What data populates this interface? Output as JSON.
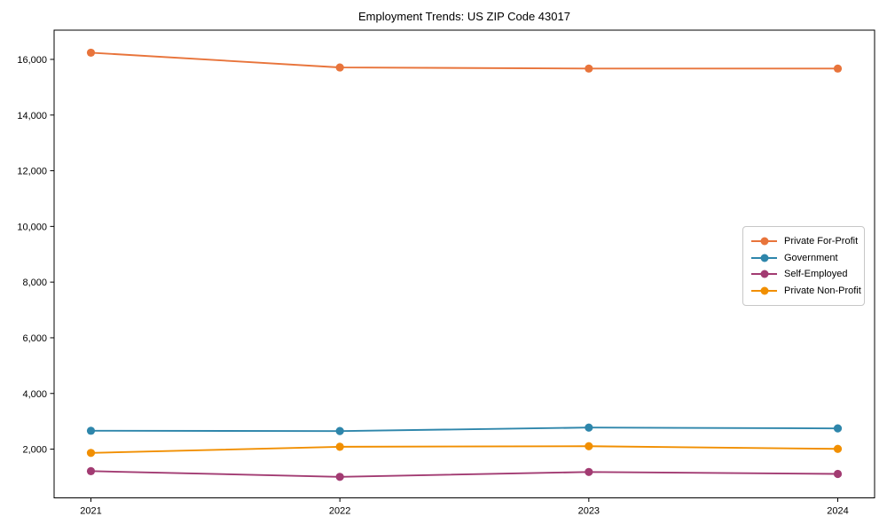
{
  "chart_data": {
    "type": "line",
    "title": "Employment Trends: US ZIP Code 43017",
    "xlabel": "",
    "ylabel": "",
    "x": [
      "2021",
      "2022",
      "2023",
      "2024"
    ],
    "series": [
      {
        "name": "Private For-Profit",
        "color": "#E8743B",
        "values": [
          16240,
          15710,
          15670,
          15670
        ]
      },
      {
        "name": "Government",
        "color": "#2E86AB",
        "values": [
          2660,
          2650,
          2775,
          2745
        ]
      },
      {
        "name": "Self-Employed",
        "color": "#A23B72",
        "values": [
          1210,
          1005,
          1180,
          1110
        ]
      },
      {
        "name": "Private Non-Profit",
        "color": "#F18F01",
        "values": [
          1865,
          2085,
          2105,
          2010
        ]
      }
    ],
    "ylim": [
      250,
      17050
    ],
    "yticks": [
      2000,
      4000,
      6000,
      8000,
      10000,
      12000,
      14000,
      16000
    ],
    "ytick_labels": [
      "2,000",
      "4,000",
      "6,000",
      "8,000",
      "10,000",
      "12,000",
      "14,000",
      "16,000"
    ],
    "grid": false,
    "legend_position": "right-middle",
    "marker": "circle",
    "axis_color": "#000000",
    "background_color": "#ffffff"
  }
}
